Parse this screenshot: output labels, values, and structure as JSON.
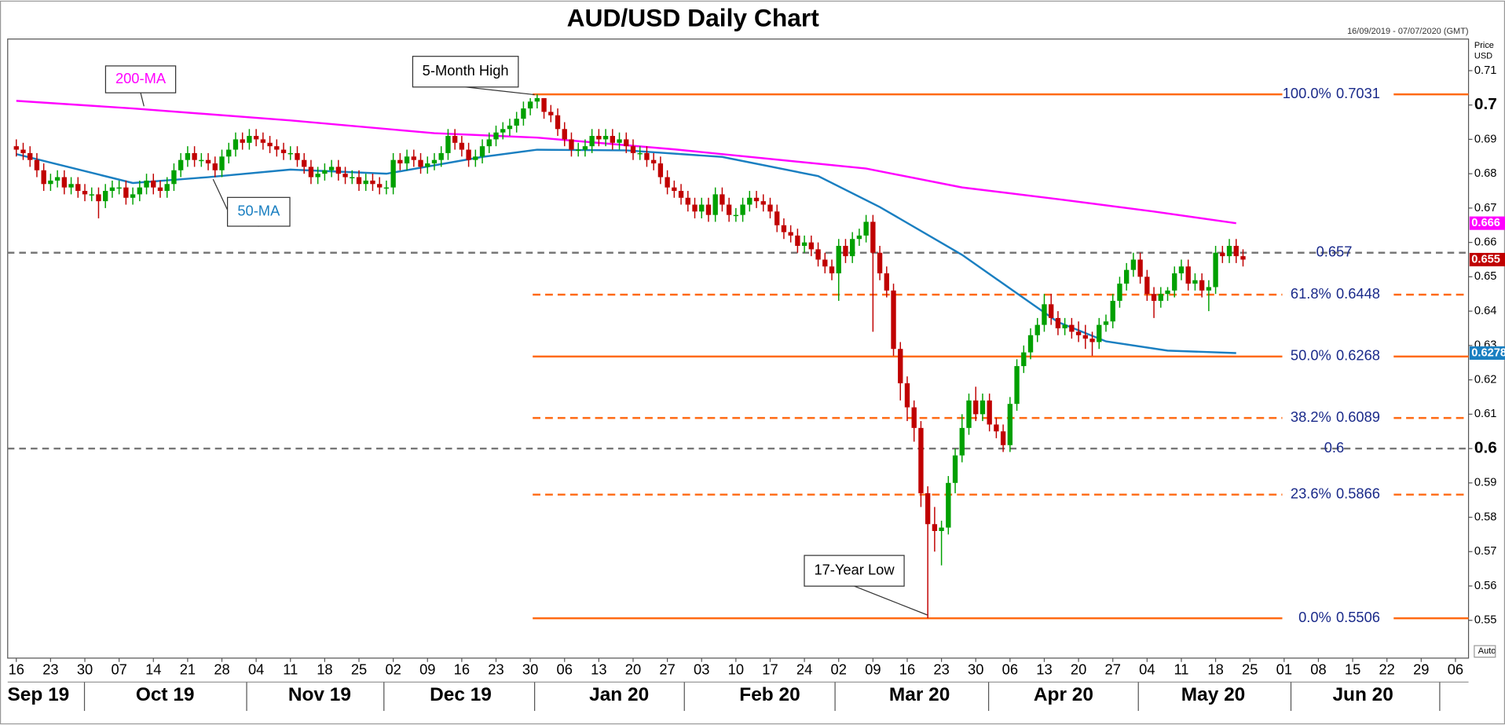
{
  "chart_data": {
    "type": "candlestick",
    "title": "AUD/USD Daily Chart",
    "subtitle": "16/09/2019 - 07/07/2020 (GMT)",
    "y_axis_label": [
      "Price",
      "USD"
    ],
    "scale_mode": "Auto",
    "ylim": [
      0.539,
      0.7192
    ],
    "yticks": [
      0.55,
      0.56,
      0.57,
      0.58,
      0.59,
      0.6,
      0.61,
      0.62,
      0.63,
      0.64,
      0.65,
      0.66,
      0.67,
      0.68,
      0.69,
      0.7,
      0.71
    ],
    "xtick_labels": [
      "16",
      "23",
      "30",
      "07",
      "14",
      "21",
      "28",
      "04",
      "11",
      "18",
      "25",
      "02",
      "09",
      "16",
      "23",
      "30",
      "06",
      "13",
      "20",
      "27",
      "03",
      "10",
      "17",
      "24",
      "02",
      "09",
      "16",
      "23",
      "30",
      "06",
      "13",
      "20",
      "27",
      "04",
      "11",
      "18",
      "25",
      "01",
      "08",
      "15",
      "22",
      "29",
      "06"
    ],
    "months": [
      "Sep 19",
      "Oct 19",
      "Nov 19",
      "Dec 19",
      "Jan 20",
      "Feb 20",
      "Mar 20",
      "Apr 20",
      "May 20",
      "Jun 20"
    ],
    "up_color": "#00a000",
    "down_color": "#c00000",
    "open": [
      0.688,
      0.687,
      0.686,
      0.684,
      0.681,
      0.677,
      0.678,
      0.679,
      0.676,
      0.677,
      0.675,
      0.674,
      0.674,
      0.672,
      0.675,
      0.676,
      0.676,
      0.673,
      0.674,
      0.676,
      0.678,
      0.676,
      0.675,
      0.677,
      0.681,
      0.684,
      0.686,
      0.684,
      0.684,
      0.683,
      0.681,
      0.685,
      0.687,
      0.69,
      0.689,
      0.691,
      0.69,
      0.689,
      0.688,
      0.687,
      0.686,
      0.686,
      0.684,
      0.682,
      0.679,
      0.68,
      0.681,
      0.682,
      0.68,
      0.679,
      0.679,
      0.677,
      0.678,
      0.677,
      0.676,
      0.676,
      0.684,
      0.683,
      0.685,
      0.684,
      0.682,
      0.683,
      0.684,
      0.686,
      0.691,
      0.689,
      0.687,
      0.684,
      0.685,
      0.688,
      0.69,
      0.692,
      0.693,
      0.694,
      0.696,
      0.699,
      0.701,
      0.702,
      0.698,
      0.697,
      0.693,
      0.69,
      0.687,
      0.687,
      0.688,
      0.691,
      0.69,
      0.691,
      0.689,
      0.69,
      0.688,
      0.686,
      0.686,
      0.684,
      0.683,
      0.679,
      0.676,
      0.675,
      0.673,
      0.671,
      0.669,
      0.671,
      0.668,
      0.674,
      0.671,
      0.668,
      0.668,
      0.671,
      0.673,
      0.672,
      0.671,
      0.669,
      0.665,
      0.663,
      0.662,
      0.659,
      0.66,
      0.658,
      0.655,
      0.653,
      0.651,
      0.659,
      0.656,
      0.661,
      0.662,
      0.666,
      0.657,
      0.651,
      0.646,
      0.629,
      0.619,
      0.612,
      0.606,
      0.587,
      0.578,
      0.576,
      0.577,
      0.59,
      0.598,
      0.606,
      0.614,
      0.61,
      0.614,
      0.607,
      0.605,
      0.601,
      0.613,
      0.624,
      0.628,
      0.633,
      0.636,
      0.642,
      0.638,
      0.635,
      0.636,
      0.634,
      0.633,
      0.632,
      0.631,
      0.636,
      0.637,
      0.643,
      0.648,
      0.652,
      0.655,
      0.65,
      0.645,
      0.643,
      0.645,
      0.646,
      0.651,
      0.653,
      0.648,
      0.649,
      0.646,
      0.647,
      0.657,
      0.656,
      0.659,
      0.656
    ],
    "high": [
      0.69,
      0.689,
      0.688,
      0.686,
      0.683,
      0.68,
      0.681,
      0.681,
      0.679,
      0.679,
      0.677,
      0.676,
      0.676,
      0.677,
      0.678,
      0.678,
      0.678,
      0.676,
      0.678,
      0.68,
      0.68,
      0.678,
      0.679,
      0.683,
      0.686,
      0.688,
      0.688,
      0.686,
      0.686,
      0.685,
      0.687,
      0.689,
      0.692,
      0.692,
      0.693,
      0.693,
      0.692,
      0.691,
      0.69,
      0.689,
      0.688,
      0.688,
      0.686,
      0.684,
      0.682,
      0.683,
      0.684,
      0.684,
      0.682,
      0.681,
      0.681,
      0.68,
      0.68,
      0.679,
      0.678,
      0.686,
      0.686,
      0.687,
      0.687,
      0.686,
      0.685,
      0.686,
      0.688,
      0.693,
      0.693,
      0.691,
      0.689,
      0.687,
      0.69,
      0.692,
      0.694,
      0.695,
      0.696,
      0.698,
      0.701,
      0.702,
      0.7031,
      0.702,
      0.7,
      0.699,
      0.695,
      0.692,
      0.689,
      0.69,
      0.693,
      0.693,
      0.693,
      0.693,
      0.692,
      0.692,
      0.69,
      0.688,
      0.688,
      0.686,
      0.685,
      0.681,
      0.678,
      0.677,
      0.675,
      0.673,
      0.673,
      0.673,
      0.676,
      0.676,
      0.673,
      0.67,
      0.673,
      0.675,
      0.675,
      0.674,
      0.673,
      0.671,
      0.667,
      0.665,
      0.664,
      0.662,
      0.662,
      0.66,
      0.657,
      0.655,
      0.661,
      0.661,
      0.663,
      0.664,
      0.668,
      0.668,
      0.659,
      0.653,
      0.648,
      0.631,
      0.621,
      0.614,
      0.608,
      0.589,
      0.583,
      0.579,
      0.592,
      0.6,
      0.61,
      0.616,
      0.618,
      0.616,
      0.616,
      0.609,
      0.607,
      0.615,
      0.626,
      0.63,
      0.635,
      0.638,
      0.645,
      0.645,
      0.64,
      0.638,
      0.638,
      0.637,
      0.636,
      0.634,
      0.638,
      0.639,
      0.645,
      0.65,
      0.654,
      0.657,
      0.657,
      0.652,
      0.647,
      0.647,
      0.647,
      0.653,
      0.655,
      0.655,
      0.651,
      0.651,
      0.649,
      0.659,
      0.659,
      0.661,
      0.661,
      0.658
    ],
    "low": [
      0.685,
      0.684,
      0.682,
      0.679,
      0.675,
      0.675,
      0.676,
      0.674,
      0.674,
      0.673,
      0.672,
      0.672,
      0.667,
      0.67,
      0.673,
      0.674,
      0.671,
      0.671,
      0.672,
      0.674,
      0.674,
      0.673,
      0.673,
      0.675,
      0.679,
      0.682,
      0.682,
      0.682,
      0.681,
      0.679,
      0.679,
      0.683,
      0.685,
      0.687,
      0.687,
      0.688,
      0.687,
      0.686,
      0.685,
      0.684,
      0.684,
      0.682,
      0.68,
      0.677,
      0.677,
      0.678,
      0.679,
      0.678,
      0.677,
      0.677,
      0.675,
      0.675,
      0.675,
      0.674,
      0.674,
      0.674,
      0.681,
      0.681,
      0.682,
      0.68,
      0.68,
      0.681,
      0.682,
      0.684,
      0.687,
      0.685,
      0.682,
      0.682,
      0.683,
      0.686,
      0.688,
      0.69,
      0.691,
      0.692,
      0.694,
      0.697,
      0.699,
      0.696,
      0.695,
      0.691,
      0.688,
      0.685,
      0.685,
      0.685,
      0.686,
      0.688,
      0.688,
      0.687,
      0.687,
      0.686,
      0.684,
      0.684,
      0.682,
      0.681,
      0.677,
      0.674,
      0.673,
      0.671,
      0.669,
      0.667,
      0.667,
      0.666,
      0.666,
      0.669,
      0.666,
      0.666,
      0.666,
      0.669,
      0.67,
      0.669,
      0.667,
      0.663,
      0.661,
      0.66,
      0.657,
      0.657,
      0.656,
      0.653,
      0.651,
      0.649,
      0.643,
      0.654,
      0.654,
      0.659,
      0.66,
      0.634,
      0.649,
      0.644,
      0.627,
      0.614,
      0.608,
      0.602,
      0.583,
      0.5506,
      0.57,
      0.566,
      0.575,
      0.587,
      0.596,
      0.604,
      0.608,
      0.608,
      0.605,
      0.603,
      0.599,
      0.599,
      0.611,
      0.622,
      0.626,
      0.631,
      0.634,
      0.636,
      0.633,
      0.633,
      0.632,
      0.631,
      0.629,
      0.627,
      0.629,
      0.634,
      0.635,
      0.641,
      0.646,
      0.65,
      0.648,
      0.643,
      0.638,
      0.641,
      0.643,
      0.644,
      0.649,
      0.646,
      0.646,
      0.644,
      0.64,
      0.645,
      0.654,
      0.654,
      0.654,
      0.653
    ],
    "close": [
      0.687,
      0.686,
      0.684,
      0.681,
      0.677,
      0.678,
      0.679,
      0.676,
      0.677,
      0.675,
      0.674,
      0.674,
      0.672,
      0.675,
      0.676,
      0.676,
      0.673,
      0.674,
      0.676,
      0.678,
      0.676,
      0.675,
      0.677,
      0.681,
      0.684,
      0.686,
      0.684,
      0.684,
      0.683,
      0.681,
      0.685,
      0.687,
      0.69,
      0.689,
      0.691,
      0.69,
      0.689,
      0.688,
      0.687,
      0.686,
      0.686,
      0.684,
      0.682,
      0.679,
      0.68,
      0.681,
      0.682,
      0.68,
      0.679,
      0.679,
      0.677,
      0.678,
      0.677,
      0.676,
      0.676,
      0.684,
      0.683,
      0.685,
      0.684,
      0.682,
      0.683,
      0.684,
      0.686,
      0.691,
      0.689,
      0.687,
      0.684,
      0.685,
      0.688,
      0.69,
      0.692,
      0.693,
      0.694,
      0.696,
      0.699,
      0.701,
      0.702,
      0.698,
      0.697,
      0.693,
      0.69,
      0.687,
      0.687,
      0.688,
      0.691,
      0.69,
      0.691,
      0.689,
      0.69,
      0.688,
      0.686,
      0.686,
      0.684,
      0.683,
      0.679,
      0.676,
      0.675,
      0.673,
      0.671,
      0.669,
      0.671,
      0.668,
      0.674,
      0.671,
      0.668,
      0.668,
      0.671,
      0.673,
      0.672,
      0.671,
      0.669,
      0.665,
      0.663,
      0.662,
      0.659,
      0.66,
      0.658,
      0.655,
      0.653,
      0.651,
      0.659,
      0.656,
      0.661,
      0.662,
      0.666,
      0.657,
      0.651,
      0.646,
      0.629,
      0.619,
      0.612,
      0.606,
      0.587,
      0.578,
      0.576,
      0.577,
      0.59,
      0.598,
      0.606,
      0.614,
      0.61,
      0.614,
      0.607,
      0.605,
      0.601,
      0.613,
      0.624,
      0.628,
      0.633,
      0.636,
      0.642,
      0.638,
      0.635,
      0.636,
      0.634,
      0.633,
      0.632,
      0.631,
      0.636,
      0.637,
      0.643,
      0.648,
      0.652,
      0.655,
      0.65,
      0.645,
      0.643,
      0.645,
      0.646,
      0.651,
      0.653,
      0.648,
      0.649,
      0.646,
      0.647,
      0.657,
      0.656,
      0.659,
      0.656,
      0.655
    ],
    "close_label": "0.655",
    "series": [
      {
        "name": "200-MA",
        "color": "#ff00ff",
        "last_label": "0.666",
        "x": [
          0,
          17,
          40,
          61,
          76,
          96,
          124,
          138,
          152,
          166,
          178
        ],
        "values": [
          0.7012,
          0.699,
          0.6955,
          0.6918,
          0.6905,
          0.6871,
          0.6815,
          0.676,
          0.6726,
          0.669,
          0.6656
        ]
      },
      {
        "name": "50-MA",
        "color": "#1a7fc1",
        "last_label": "0.6278",
        "x": [
          0,
          17,
          28,
          40,
          54,
          68,
          76,
          89,
          103,
          117,
          126,
          138,
          145,
          152,
          159,
          168,
          178
        ],
        "values": [
          0.6857,
          0.6773,
          0.679,
          0.6812,
          0.68,
          0.6849,
          0.687,
          0.6868,
          0.6849,
          0.6793,
          0.6703,
          0.6564,
          0.6466,
          0.6368,
          0.6312,
          0.6285,
          0.6278
        ]
      }
    ],
    "levels": [
      {
        "label": "100.0%",
        "value": 0.7031,
        "style": "solid"
      },
      {
        "label": "61.8%",
        "value": 0.6448,
        "style": "dashed"
      },
      {
        "label": "50.0%",
        "value": 0.6268,
        "style": "solid"
      },
      {
        "label": "38.2%",
        "value": 0.6089,
        "style": "dashed"
      },
      {
        "label": "23.6%",
        "value": 0.5866,
        "style": "dashed"
      },
      {
        "label": "0.0%",
        "value": 0.5506,
        "style": "solid"
      }
    ],
    "level_color": "#ff6a13",
    "reference_lines": [
      {
        "value": 0.657
      },
      {
        "value": 0.6
      }
    ],
    "annotations": [
      "5-Month High",
      "17-Year Low"
    ]
  }
}
